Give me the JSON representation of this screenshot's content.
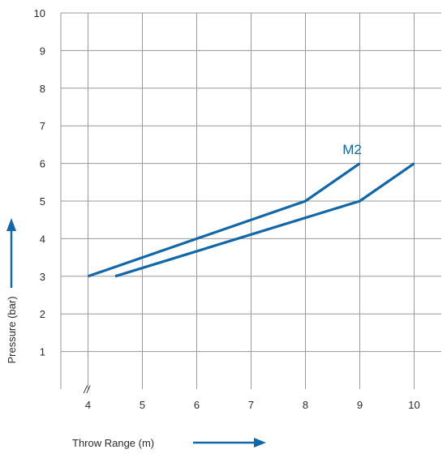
{
  "chart_data": {
    "type": "line",
    "title": "",
    "xlabel": "Throw Range (m)",
    "ylabel": "Pressure (bar)",
    "xlim": [
      3.5,
      10.5
    ],
    "ylim": [
      0,
      10
    ],
    "x_ticks": [
      "4",
      "5",
      "6",
      "7",
      "8",
      "9",
      "10"
    ],
    "y_ticks": [
      "1",
      "2",
      "3",
      "4",
      "5",
      "6",
      "7",
      "8",
      "9",
      "10"
    ],
    "grid": true,
    "axis_break_symbol": "//",
    "series_label": "M2",
    "series": [
      {
        "points": [
          [
            4,
            3
          ],
          [
            8,
            5
          ],
          [
            9,
            6
          ]
        ]
      },
      {
        "points": [
          [
            4.5,
            3
          ],
          [
            9,
            5
          ],
          [
            10,
            6
          ]
        ]
      }
    ],
    "colors": {
      "series": "#1167a8",
      "grid": "#9a9a9a",
      "text": "#2b2b2b",
      "arrow": "#1167a8"
    }
  }
}
